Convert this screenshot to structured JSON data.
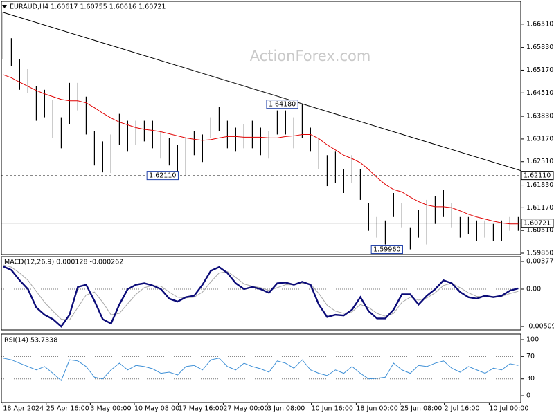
{
  "chart_data": [
    {
      "type": "ohlc",
      "title": "EURAUD,H4  1.60617 1.60755 1.60616 1.60721",
      "watermark": "ActionForex.com",
      "x": [
        0,
        1,
        2,
        3,
        4,
        5,
        6,
        7,
        8,
        9,
        10,
        11,
        12,
        13,
        14,
        15,
        16,
        17,
        18,
        19,
        20,
        21,
        22,
        23,
        24,
        25,
        26,
        27,
        28,
        29,
        30,
        31,
        32,
        33,
        34,
        35,
        36,
        37,
        38,
        39,
        40,
        41,
        42,
        43,
        44,
        45,
        46,
        47,
        48,
        49,
        50,
        51,
        52,
        53,
        54,
        55,
        56,
        57,
        58,
        59,
        60,
        61,
        62
      ],
      "high": [
        1.6685,
        1.661,
        1.655,
        1.652,
        1.647,
        1.646,
        1.643,
        1.638,
        1.648,
        1.648,
        1.644,
        1.634,
        1.631,
        1.633,
        1.639,
        1.637,
        1.637,
        1.637,
        1.637,
        1.634,
        1.632,
        1.63,
        1.632,
        1.634,
        1.633,
        1.638,
        1.641,
        1.637,
        1.635,
        1.636,
        1.637,
        1.635,
        1.634,
        1.64,
        1.64,
        1.638,
        1.6418,
        1.635,
        1.632,
        1.627,
        1.628,
        1.623,
        1.627,
        1.623,
        1.613,
        1.609,
        1.608,
        1.616,
        1.613,
        1.606,
        1.611,
        1.614,
        1.615,
        1.617,
        1.613,
        1.609,
        1.609,
        1.608,
        1.608,
        1.607,
        1.608,
        1.609,
        1.609
      ],
      "low": [
        1.655,
        1.653,
        1.646,
        1.645,
        1.637,
        1.638,
        1.632,
        1.629,
        1.636,
        1.64,
        1.633,
        1.624,
        1.622,
        1.6218,
        1.63,
        1.628,
        1.63,
        1.631,
        1.629,
        1.626,
        1.624,
        1.622,
        1.6211,
        1.627,
        1.625,
        1.632,
        1.634,
        1.629,
        1.628,
        1.629,
        1.629,
        1.627,
        1.626,
        1.633,
        1.633,
        1.629,
        1.632,
        1.628,
        1.623,
        1.618,
        1.619,
        1.616,
        1.619,
        1.614,
        1.605,
        1.603,
        1.601,
        1.609,
        1.606,
        1.5996,
        1.603,
        1.601,
        1.607,
        1.609,
        1.606,
        1.603,
        1.604,
        1.602,
        1.603,
        1.602,
        1.602,
        1.605,
        1.605
      ],
      "color": "#000000",
      "ma": {
        "color": "#e00000",
        "values": [
          1.6504,
          1.6495,
          1.6482,
          1.647,
          1.6458,
          1.6448,
          1.644,
          1.6432,
          1.6428,
          1.6428,
          1.6422,
          1.6408,
          1.6392,
          1.6378,
          1.6366,
          1.6358,
          1.635,
          1.6345,
          1.6342,
          1.6338,
          1.6332,
          1.6326,
          1.632,
          1.6316,
          1.6313,
          1.6315,
          1.632,
          1.6324,
          1.6324,
          1.6322,
          1.6322,
          1.6322,
          1.632,
          1.632,
          1.6324,
          1.6326,
          1.633,
          1.633,
          1.6318,
          1.63,
          1.6285,
          1.627,
          1.626,
          1.6248,
          1.6228,
          1.6205,
          1.6185,
          1.617,
          1.6163,
          1.6148,
          1.6135,
          1.6125,
          1.612,
          1.612,
          1.6117,
          1.6108,
          1.6098,
          1.609,
          1.6084,
          1.6078,
          1.6073,
          1.607,
          1.607
        ]
      },
      "trendline": {
        "x": [
          0,
          62.3
        ],
        "y": [
          1.6685,
          1.6225
        ],
        "color": "#000000"
      },
      "levels": [
        {
          "value": 1.6211,
          "label": "1.62110",
          "style": "dashed"
        },
        {
          "value": 1.60721,
          "label": "1.60721",
          "style": "solid"
        }
      ],
      "annotations": [
        {
          "x": 33.6,
          "y": 1.6418,
          "label": "1.64180"
        },
        {
          "x": 19.2,
          "y": 1.6211,
          "label": "1.62110"
        },
        {
          "x": 46.2,
          "y": 1.5996,
          "label": "1.59960"
        }
      ],
      "xlim": [
        -0.2,
        62.3
      ],
      "ylim": [
        1.5981,
        1.6717
      ],
      "yticks": [
        {
          "value": 1.6651,
          "label": "1.66510"
        },
        {
          "value": 1.6583,
          "label": "1.65830"
        },
        {
          "value": 1.6517,
          "label": "1.65170"
        },
        {
          "value": 1.6451,
          "label": "1.64510"
        },
        {
          "value": 1.6383,
          "label": "1.63830"
        },
        {
          "value": 1.6317,
          "label": "1.63170"
        },
        {
          "value": 1.6251,
          "label": "1.62510"
        },
        {
          "value": 1.6183,
          "label": "1.61830"
        },
        {
          "value": 1.6117,
          "label": "1.61170"
        },
        {
          "value": 1.6051,
          "label": "1.60510"
        },
        {
          "value": 1.5985,
          "label": "1.59850"
        }
      ],
      "xticks": [
        {
          "value": 0,
          "label": "18 Apr 2024"
        },
        {
          "value": 5.2,
          "label": "25 Apr 16:00"
        },
        {
          "value": 10.5,
          "label": "3 May 00:00"
        },
        {
          "value": 15.8,
          "label": "10 May 08:00"
        },
        {
          "value": 21.1,
          "label": "17 May 16:00"
        },
        {
          "value": 26.5,
          "label": "27 May 00:00"
        },
        {
          "value": 31.8,
          "label": "3 Jun 08:00"
        },
        {
          "value": 37.1,
          "label": "10 Jun 16:00"
        },
        {
          "value": 42.5,
          "label": "18 Jun 00:00"
        },
        {
          "value": 47.8,
          "label": "25 Jun 08:00"
        },
        {
          "value": 53.1,
          "label": "2 Jul 16:00"
        },
        {
          "value": 58.5,
          "label": "10 Jul 00:00"
        }
      ]
    },
    {
      "type": "line",
      "title": "MACD(12,26,9) 0.000128 -0.000262",
      "series": [
        {
          "color": "#0b0b78",
          "values": [
            0.0031,
            0.0026,
            0.0012,
            0.0,
            -0.0025,
            -0.0035,
            -0.0041,
            -0.0051,
            -0.0035,
            0.0003,
            0.0006,
            -0.0016,
            -0.0041,
            -0.0047,
            -0.0021,
            0.0,
            0.0006,
            0.0008,
            0.0005,
            0.0,
            -0.0013,
            -0.0017,
            -0.0011,
            -0.0009,
            0.0006,
            0.0025,
            0.003,
            0.0022,
            0.0008,
            0.0,
            0.0003,
            0.0,
            -0.0005,
            0.0008,
            0.0009,
            0.0006,
            0.001,
            0.0006,
            -0.0021,
            -0.0038,
            -0.0035,
            -0.0036,
            -0.0028,
            -0.0011,
            -0.003,
            -0.004,
            -0.004,
            -0.0028,
            -0.0007,
            -0.0007,
            -0.0021,
            -0.0009,
            0.0,
            0.0012,
            0.0008,
            -0.0004,
            -0.0011,
            -0.0013,
            -0.0009,
            -0.0011,
            -0.0009,
            -0.0002,
            0.0001
          ]
        },
        {
          "color": "#a8a8a8",
          "values": [
            0.0033,
            0.003,
            0.0022,
            0.0012,
            -0.0003,
            -0.0018,
            -0.003,
            -0.0041,
            -0.0042,
            -0.0025,
            -0.0008,
            -0.0004,
            -0.0018,
            -0.0035,
            -0.0033,
            -0.002,
            -0.0007,
            0.0002,
            0.0005,
            0.0004,
            -0.0004,
            -0.0011,
            -0.0012,
            -0.0011,
            -0.0004,
            0.001,
            0.0022,
            0.0024,
            0.0016,
            0.0007,
            0.0004,
            0.0002,
            -0.0002,
            0.0002,
            0.0006,
            0.0006,
            0.0008,
            0.0007,
            -0.0006,
            -0.0022,
            -0.003,
            -0.0033,
            -0.0031,
            -0.0021,
            -0.0025,
            -0.0033,
            -0.0037,
            -0.0033,
            -0.0018,
            -0.0011,
            -0.0015,
            -0.0012,
            -0.0005,
            0.0005,
            0.0008,
            0.0002,
            -0.0005,
            -0.001,
            -0.001,
            -0.001,
            -0.001,
            -0.0006,
            -0.0003
          ]
        }
      ],
      "levels": [
        {
          "value": 0,
          "style": "dotted"
        }
      ],
      "ylim": [
        -0.00556,
        0.00443
      ],
      "yticks": [
        0.00377,
        {
          "value": 0,
          "label": "0.00"
        },
        -0.005095
      ]
    },
    {
      "type": "line",
      "title": "RSI(14) 53.7338",
      "series": [
        {
          "color": "#3d8fd6",
          "values": [
            67,
            64,
            58,
            52,
            46,
            52,
            40,
            27,
            64,
            62,
            52,
            33,
            30,
            46,
            58,
            46,
            54,
            52,
            48,
            40,
            42,
            37,
            52,
            54,
            46,
            64,
            67,
            52,
            46,
            58,
            52,
            48,
            42,
            62,
            58,
            49,
            64,
            46,
            40,
            36,
            46,
            40,
            52,
            40,
            30,
            31,
            33,
            58,
            46,
            40,
            54,
            52,
            58,
            62,
            49,
            42,
            52,
            46,
            40,
            49,
            46,
            57,
            54
          ]
        }
      ],
      "levels": [
        {
          "value": 70,
          "style": "dotted"
        },
        {
          "value": 30,
          "style": "dotted"
        }
      ],
      "ylim": [
        -12.3,
        109.9
      ],
      "yticks": [
        100,
        70,
        30,
        0
      ]
    }
  ]
}
